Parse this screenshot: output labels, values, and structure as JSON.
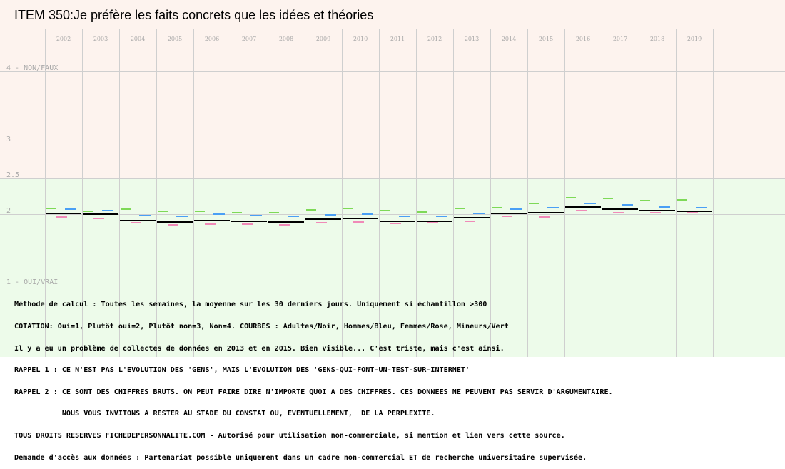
{
  "title": "ITEM 350:Je préfère les faits concrets que les idées et théories",
  "chart_data": {
    "type": "line",
    "title": "ITEM 350:Je préfère les faits concrets que les idées et théories",
    "categories": [
      "2002",
      "2003",
      "2004",
      "2005",
      "2006",
      "2007",
      "2008",
      "2009",
      "2010",
      "2011",
      "2012",
      "2013",
      "2014",
      "2015",
      "2016",
      "2017",
      "2018",
      "2019"
    ],
    "ylim": [
      1,
      4
    ],
    "y_ticks": [
      {
        "value": 4,
        "label": "4 - NON/FAUX"
      },
      {
        "value": 3,
        "label": "3"
      },
      {
        "value": 2.5,
        "label": "2.5"
      },
      {
        "value": 2,
        "label": "2"
      },
      {
        "value": 1,
        "label": "1 - OUI/VRAI"
      }
    ],
    "bands": [
      {
        "from": 2.5,
        "to": 4,
        "color": "#fdf3ee"
      },
      {
        "from": 1,
        "to": 2.5,
        "color": "#edfbea"
      }
    ],
    "grid": true,
    "series": [
      {
        "name": "Adultes",
        "color": "#000000",
        "values": [
          2.01,
          2.0,
          1.91,
          1.89,
          1.91,
          1.9,
          1.89,
          1.93,
          1.94,
          1.9,
          1.9,
          1.95,
          2.01,
          2.02,
          2.1,
          2.07,
          2.05,
          2.04
        ]
      },
      {
        "name": "Hommes",
        "color": "#4a9ff5",
        "values": [
          2.07,
          2.05,
          1.98,
          1.97,
          2.0,
          1.98,
          1.97,
          1.99,
          2.0,
          1.97,
          1.97,
          2.01,
          2.07,
          2.09,
          2.15,
          2.13,
          2.1,
          2.09
        ]
      },
      {
        "name": "Femmes",
        "color": "#f08ab8",
        "values": [
          1.96,
          1.94,
          1.88,
          1.85,
          1.86,
          1.86,
          1.85,
          1.88,
          1.89,
          1.87,
          1.88,
          1.9,
          1.97,
          1.96,
          2.05,
          2.02,
          2.02,
          2.02
        ]
      },
      {
        "name": "Mineurs",
        "color": "#7ed957",
        "values": [
          2.08,
          2.04,
          2.07,
          2.04,
          2.04,
          2.02,
          2.02,
          2.06,
          2.08,
          2.05,
          2.03,
          2.08,
          2.09,
          2.15,
          2.23,
          2.22,
          2.19,
          2.2
        ]
      }
    ]
  },
  "notes": [
    "Méthode de calcul : Toutes les semaines, la moyenne sur les 30 derniers jours. Uniquement si échantillon >300",
    "COTATION: Oui=1, Plutôt oui=2, Plutôt non=3, Non=4. COURBES : Adultes/Noir, Hommes/Bleu, Femmes/Rose, Mineurs/Vert",
    "Il y a eu un problème de collectes de données en 2013 et en 2015. Bien visible... C'est triste, mais c'est ainsi.",
    "RAPPEL 1 : CE N'EST PAS L'EVOLUTION DES 'GENS', MAIS L'EVOLUTION DES 'GENS-QUI-FONT-UN-TEST-SUR-INTERNET'",
    "RAPPEL 2 : CE SONT DES CHIFFRES BRUTS. ON PEUT FAIRE DIRE N'IMPORTE QUOI A DES CHIFFRES. CES DONNEES NE PEUVENT PAS SERVIR D'ARGUMENTAIRE.",
    "           NOUS VOUS INVITONS A RESTER AU STADE DU CONSTAT OU, EVENTUELLEMENT,  DE LA PERPLEXITE.",
    "TOUS DROITS RESERVES FICHEDEPERSONNALITE.COM - Autorisé pour utilisation non-commerciale, si mention et lien vers cette source.",
    "Demande d'accès aux données : Partenariat possible uniquement dans un cadre non-commercial ET de recherche universitaire supervisée."
  ]
}
